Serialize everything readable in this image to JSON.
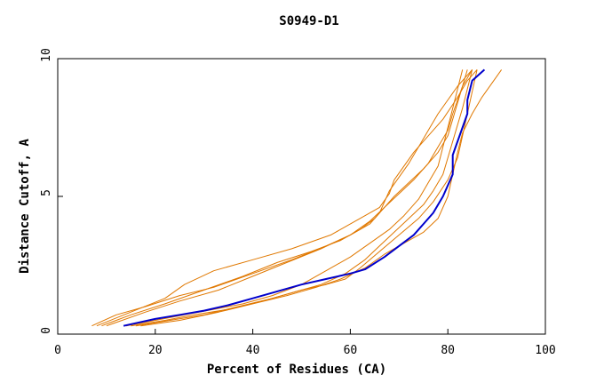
{
  "chart_data": {
    "type": "line",
    "title": "S0949-D1",
    "xlabel": "Percent of Residues (CA)",
    "ylabel": "Distance Cutoff, A",
    "xlim": [
      0,
      100
    ],
    "ylim": [
      0,
      10
    ],
    "xticks": [
      "0",
      "20",
      "40",
      "60",
      "80",
      "100"
    ],
    "yticks": [
      "0",
      "5",
      "10"
    ],
    "grid": false,
    "colors": {
      "highlight": "#0000cc",
      "others": "#e07800",
      "axis": "#000000"
    },
    "highlight": {
      "x": [
        13.5,
        20,
        25,
        30,
        35,
        40,
        45,
        50,
        55,
        60,
        63,
        67,
        70,
        73,
        75,
        77,
        79,
        80,
        81,
        81,
        82,
        83,
        84,
        84,
        85,
        87.5
      ],
      "y": [
        0.3,
        0.55,
        0.7,
        0.85,
        1.05,
        1.3,
        1.55,
        1.8,
        2.0,
        2.2,
        2.35,
        2.8,
        3.2,
        3.6,
        4.0,
        4.4,
        5.0,
        5.4,
        5.8,
        6.5,
        7.0,
        7.5,
        8.0,
        8.5,
        9.2,
        9.6
      ]
    },
    "series": [
      {
        "x": [
          7,
          12,
          18,
          25,
          32,
          40,
          48,
          55,
          60,
          64,
          66,
          67,
          68,
          70,
          72,
          74,
          76,
          78,
          80,
          82,
          84,
          85
        ],
        "y": [
          0.3,
          0.7,
          1.0,
          1.4,
          1.7,
          2.2,
          2.7,
          3.2,
          3.6,
          4.0,
          4.4,
          4.8,
          5.2,
          5.7,
          6.2,
          6.8,
          7.4,
          8.0,
          8.5,
          9.0,
          9.4,
          9.6
        ]
      },
      {
        "x": [
          8,
          15,
          22,
          26,
          32,
          40,
          48,
          56,
          62,
          66,
          68,
          69,
          71,
          73,
          76,
          79,
          82,
          84,
          86
        ],
        "y": [
          0.3,
          0.8,
          1.3,
          1.8,
          2.3,
          2.7,
          3.1,
          3.6,
          4.2,
          4.6,
          5.1,
          5.6,
          6.1,
          6.6,
          7.2,
          7.8,
          8.6,
          9.2,
          9.6
        ]
      },
      {
        "x": [
          9,
          15,
          22,
          30,
          38,
          45,
          52,
          58,
          62,
          65,
          67,
          69,
          72,
          75,
          78,
          80,
          81,
          82,
          83,
          84
        ],
        "y": [
          0.3,
          0.7,
          1.1,
          1.6,
          2.1,
          2.6,
          3.0,
          3.4,
          3.8,
          4.2,
          4.6,
          5.0,
          5.5,
          6.0,
          6.6,
          7.2,
          7.8,
          8.4,
          9.0,
          9.6
        ]
      },
      {
        "x": [
          10,
          18,
          25,
          33,
          40,
          47,
          54,
          60,
          64,
          67,
          70,
          73,
          76,
          78,
          80,
          81,
          82,
          83,
          84,
          85
        ],
        "y": [
          0.3,
          0.8,
          1.2,
          1.6,
          2.1,
          2.6,
          3.1,
          3.6,
          4.1,
          4.6,
          5.1,
          5.6,
          6.2,
          6.8,
          7.4,
          8.0,
          8.5,
          9.0,
          9.3,
          9.6
        ]
      },
      {
        "x": [
          14,
          20,
          26,
          32,
          38,
          44,
          50,
          55,
          60,
          64,
          68,
          71,
          74,
          76,
          78,
          79,
          80,
          81,
          82,
          83
        ],
        "y": [
          0.3,
          0.5,
          0.7,
          0.9,
          1.1,
          1.4,
          1.8,
          2.3,
          2.8,
          3.3,
          3.8,
          4.3,
          4.9,
          5.5,
          6.1,
          6.8,
          7.5,
          8.2,
          8.9,
          9.6
        ]
      },
      {
        "x": [
          15,
          22,
          28,
          35,
          42,
          48,
          54,
          59,
          63,
          66,
          69,
          72,
          75,
          77,
          79,
          80,
          81,
          82,
          83,
          84,
          85
        ],
        "y": [
          0.3,
          0.5,
          0.7,
          0.9,
          1.2,
          1.5,
          1.8,
          2.2,
          2.7,
          3.2,
          3.7,
          4.2,
          4.7,
          5.2,
          5.8,
          6.4,
          7.0,
          7.6,
          8.2,
          8.9,
          9.6
        ]
      },
      {
        "x": [
          16,
          23,
          30,
          37,
          44,
          50,
          55,
          59,
          62,
          66,
          70,
          74,
          77,
          80,
          82,
          83,
          84,
          85,
          86
        ],
        "y": [
          0.3,
          0.5,
          0.7,
          1.0,
          1.3,
          1.6,
          1.8,
          2.0,
          2.4,
          3.0,
          3.6,
          4.2,
          4.8,
          5.6,
          6.4,
          7.2,
          8.0,
          8.8,
          9.6
        ]
      },
      {
        "x": [
          17,
          25,
          33,
          40,
          47,
          53,
          58,
          63,
          67,
          71,
          75,
          78,
          80,
          81,
          82,
          83,
          85,
          87,
          89,
          91
        ],
        "y": [
          0.3,
          0.5,
          0.8,
          1.1,
          1.4,
          1.7,
          2.0,
          2.4,
          2.9,
          3.3,
          3.7,
          4.2,
          5.0,
          5.8,
          6.6,
          7.3,
          8.0,
          8.6,
          9.1,
          9.6
        ]
      }
    ]
  }
}
